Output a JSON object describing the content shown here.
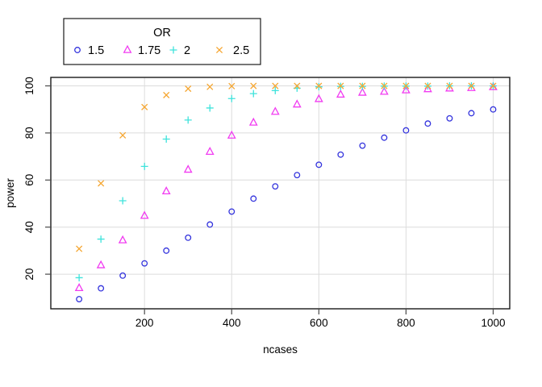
{
  "chart_data": {
    "type": "scatter",
    "title": "",
    "xlabel": "ncases",
    "ylabel": "power",
    "x": [
      50,
      100,
      150,
      200,
      250,
      300,
      350,
      400,
      450,
      500,
      550,
      600,
      650,
      700,
      750,
      800,
      850,
      900,
      950,
      1000
    ],
    "series": [
      {
        "name": "1.5",
        "marker": "circle",
        "color": "#3434dd",
        "values": [
          9.4,
          14,
          19.4,
          24.6,
          30,
          35.5,
          41.1,
          46.6,
          52.1,
          57.3,
          62.1,
          66.5,
          70.8,
          74.6,
          78,
          81.1,
          84,
          86.2,
          88.4,
          90
        ]
      },
      {
        "name": "1.75",
        "marker": "triangle",
        "color": "#f13cf1",
        "values": [
          14.1,
          23.8,
          34.4,
          44.8,
          55.2,
          64.4,
          72,
          78.9,
          84.4,
          89,
          92.1,
          94.4,
          96.3,
          97.1,
          97.5,
          98.1,
          98.6,
          98.9,
          99.1,
          99.5
        ]
      },
      {
        "name": "2",
        "marker": "plus",
        "color": "#3fe3dc",
        "values": [
          18.5,
          34.9,
          51.2,
          65.8,
          77.4,
          85.5,
          90.6,
          94.6,
          96.7,
          98,
          99,
          99.6,
          99.8,
          99.8,
          99.9,
          99.9,
          99.9,
          100,
          100,
          100
        ]
      },
      {
        "name": "2.5",
        "marker": "x",
        "color": "#f5a631",
        "values": [
          30.8,
          58.6,
          79,
          91,
          96.1,
          98.8,
          99.6,
          99.9,
          100,
          100,
          100,
          100,
          100,
          100,
          100,
          100,
          100,
          100,
          100,
          100
        ]
      }
    ],
    "legend": {
      "title": "OR",
      "position": "top-left",
      "entries": [
        "1.5",
        "1.75",
        "2",
        "2.5"
      ]
    },
    "axes": {
      "x_ticks": [
        200,
        400,
        600,
        800,
        1000
      ],
      "y_ticks": [
        20,
        40,
        60,
        80,
        100
      ],
      "x_range": [
        -15,
        1038
      ],
      "y_range": [
        5.3,
        103.6
      ],
      "grid": true
    },
    "colors": {
      "background": "#ffffff",
      "grid": "#dcdcdc",
      "box": "#1a1a1a",
      "tick": "#4a4a4a",
      "text": "#000000"
    }
  }
}
